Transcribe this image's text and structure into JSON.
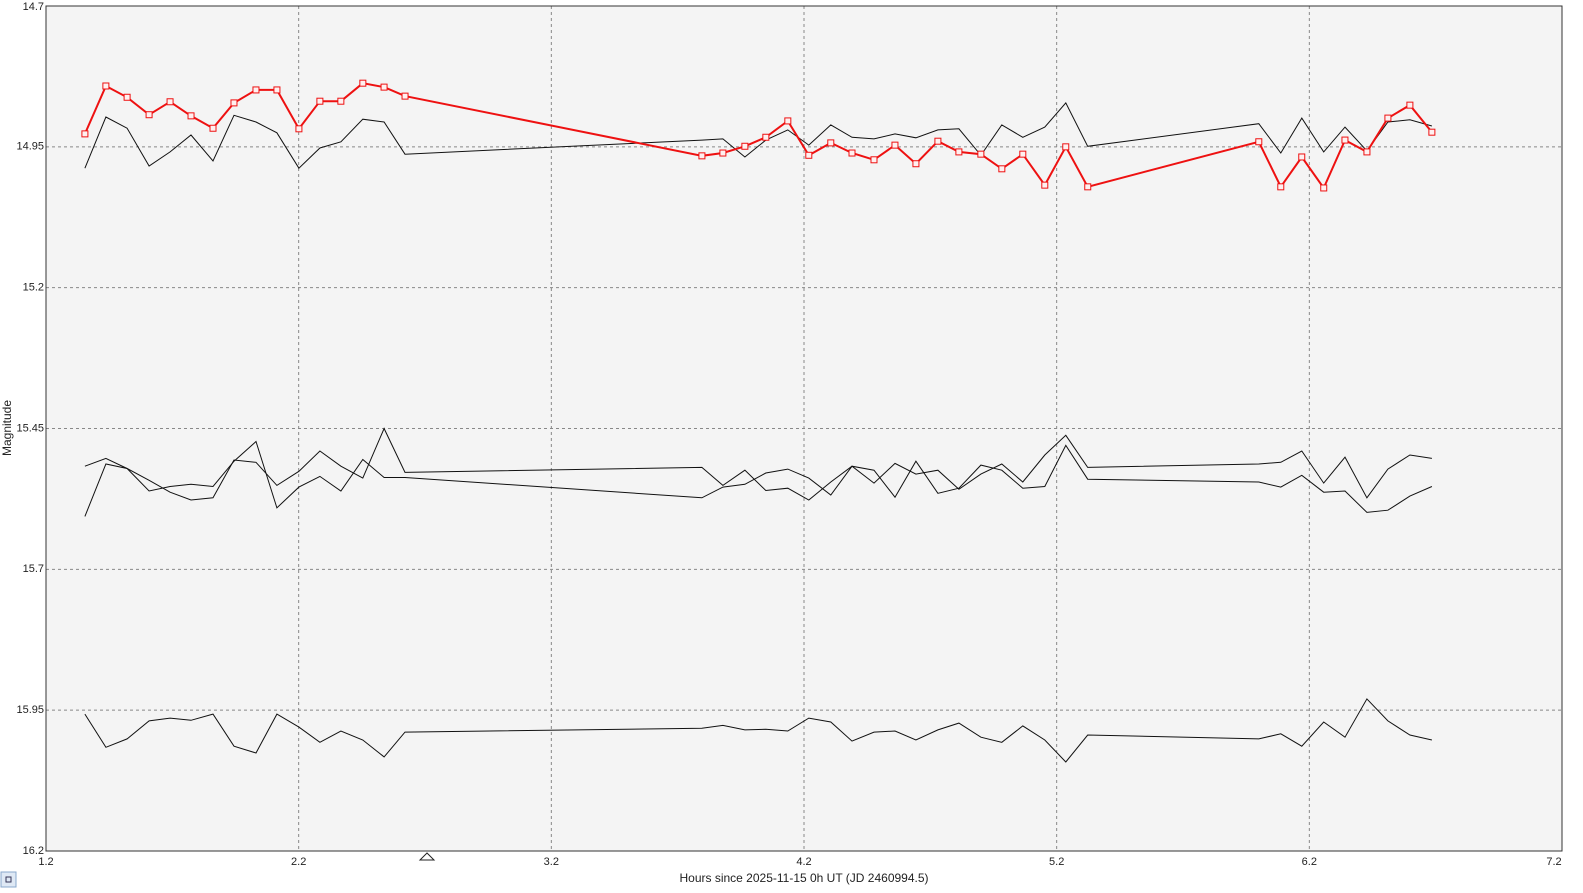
{
  "chart_data": {
    "type": "line",
    "x_label": "Hours since 2025-11-15 0h UT (JD 2460994.5)",
    "y_label": "Magnitude",
    "xlim": [
      1.2,
      7.2
    ],
    "xticks": [
      1.2,
      2.2,
      3.2,
      4.2,
      5.2,
      6.2,
      7.2
    ],
    "ylim": [
      14.7,
      16.2
    ],
    "yticks": [
      14.7,
      14.95,
      15.2,
      15.45,
      15.7,
      15.95,
      16.2
    ],
    "y_inverted": true,
    "grid": true,
    "x": [
      1.354,
      1.437,
      1.521,
      1.608,
      1.691,
      1.774,
      1.861,
      1.944,
      2.031,
      2.114,
      2.201,
      2.284,
      2.367,
      2.454,
      2.538,
      2.621,
      3.796,
      3.879,
      3.966,
      4.049,
      4.136,
      4.219,
      4.306,
      4.39,
      4.477,
      4.56,
      4.643,
      4.73,
      4.813,
      4.9,
      4.983,
      5.066,
      5.153,
      5.236,
      5.323,
      6.0,
      6.087,
      6.17,
      6.257,
      6.341,
      6.428,
      6.511,
      6.598,
      6.685
    ],
    "series": [
      {
        "color": "#ee1111",
        "markers": true,
        "values": [
          14.927,
          14.842,
          14.862,
          14.893,
          14.87,
          14.895,
          14.917,
          14.872,
          14.849,
          14.849,
          14.918,
          14.869,
          14.869,
          14.837,
          14.844,
          14.86,
          14.966,
          14.961,
          14.949,
          14.933,
          14.904,
          14.965,
          14.943,
          14.961,
          14.973,
          14.947,
          14.98,
          14.94,
          14.959,
          14.963,
          14.989,
          14.963,
          15.018,
          14.95,
          15.021,
          14.941,
          15.021,
          14.968,
          15.023,
          14.938,
          14.959,
          14.899,
          14.876,
          14.924
        ]
      },
      {
        "color": "#111111",
        "markers": false,
        "values": [
          14.988,
          14.897,
          14.917,
          14.984,
          14.959,
          14.929,
          14.975,
          14.894,
          14.906,
          14.925,
          14.988,
          14.952,
          14.941,
          14.901,
          14.906,
          14.963,
          14.938,
          14.936,
          14.968,
          14.938,
          14.92,
          14.947,
          14.911,
          14.933,
          14.936,
          14.927,
          14.934,
          14.92,
          14.918,
          14.965,
          14.911,
          14.933,
          14.915,
          14.872,
          14.949,
          14.909,
          14.961,
          14.899,
          14.959,
          14.915,
          14.957,
          14.906,
          14.902,
          14.913
        ]
      },
      {
        "color": "#111111",
        "markers": false,
        "values": [
          15.517,
          15.503,
          15.521,
          15.542,
          15.563,
          15.577,
          15.573,
          15.506,
          15.51,
          15.551,
          15.526,
          15.49,
          15.517,
          15.538,
          15.45,
          15.528,
          15.519,
          15.551,
          15.524,
          15.56,
          15.556,
          15.577,
          15.545,
          15.517,
          15.524,
          15.572,
          15.508,
          15.565,
          15.556,
          15.515,
          15.524,
          15.556,
          15.553,
          15.48,
          15.54,
          15.545,
          15.554,
          15.533,
          15.563,
          15.561,
          15.599,
          15.595,
          15.57,
          15.553
        ]
      },
      {
        "color": "#111111",
        "markers": false,
        "values": [
          15.606,
          15.513,
          15.521,
          15.561,
          15.553,
          15.549,
          15.553,
          15.508,
          15.473,
          15.591,
          15.554,
          15.535,
          15.561,
          15.505,
          15.537,
          15.537,
          15.573,
          15.554,
          15.549,
          15.529,
          15.522,
          15.538,
          15.568,
          15.517,
          15.547,
          15.512,
          15.531,
          15.524,
          15.558,
          15.531,
          15.513,
          15.545,
          15.497,
          15.462,
          15.519,
          15.513,
          15.51,
          15.49,
          15.547,
          15.501,
          15.573,
          15.522,
          15.497,
          15.503
        ]
      },
      {
        "color": "#111111",
        "markers": false,
        "values": [
          15.957,
          16.016,
          16.001,
          15.969,
          15.964,
          15.968,
          15.957,
          16.014,
          16.026,
          15.957,
          15.98,
          16.007,
          15.987,
          16.003,
          16.033,
          15.989,
          15.982,
          15.977,
          15.985,
          15.984,
          15.987,
          15.964,
          15.971,
          16.005,
          15.989,
          15.987,
          16.003,
          15.985,
          15.973,
          15.998,
          16.007,
          15.978,
          16.003,
          16.042,
          15.994,
          16.001,
          15.992,
          16.014,
          15.971,
          15.998,
          15.93,
          15.969,
          15.994,
          16.003
        ]
      }
    ]
  }
}
